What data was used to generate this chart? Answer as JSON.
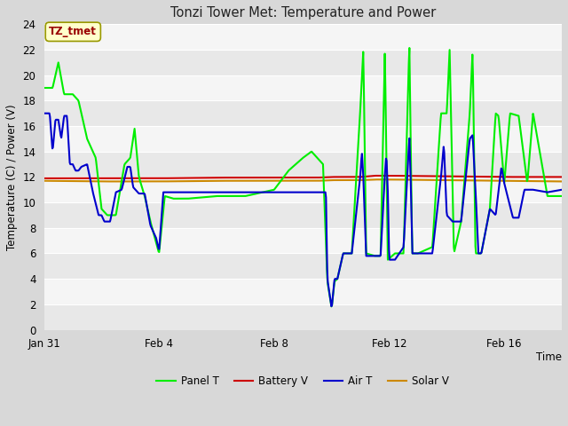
{
  "title": "Tonzi Tower Met: Temperature and Power",
  "xlabel": "Time",
  "ylabel": "Temperature (C) / Power (V)",
  "ylim": [
    0,
    24
  ],
  "yticks": [
    0,
    2,
    4,
    6,
    8,
    10,
    12,
    14,
    16,
    18,
    20,
    22,
    24
  ],
  "background_color": "#d8d8d8",
  "outer_bg": "#d8d8d8",
  "band_colors": [
    "#e8e8e8",
    "#f5f5f5"
  ],
  "legend_labels": [
    "Panel T",
    "Battery V",
    "Air T",
    "Solar V"
  ],
  "legend_colors": [
    "#00ee00",
    "#cc0000",
    "#0000cc",
    "#cc8800"
  ],
  "tz_label": "TZ_tmet",
  "tz_label_color": "#990000",
  "tz_box_facecolor": "#ffffcc",
  "tz_box_edgecolor": "#999900",
  "line_width": 1.5,
  "x_tick_labels": [
    "Jan 31",
    "Feb 4",
    "Feb 8",
    "Feb 12",
    "Feb 16"
  ],
  "x_tick_positions": [
    0,
    4,
    8,
    12,
    16
  ],
  "x_lim": [
    0,
    18
  ],
  "figsize": [
    6.4,
    4.8
  ],
  "dpi": 100,
  "panel_t_keypoints": [
    [
      0,
      19
    ],
    [
      0.3,
      19
    ],
    [
      0.5,
      21
    ],
    [
      0.7,
      18.5
    ],
    [
      1.0,
      18.5
    ],
    [
      1.2,
      18
    ],
    [
      1.5,
      15
    ],
    [
      1.8,
      13.5
    ],
    [
      2.0,
      9.5
    ],
    [
      2.2,
      9.0
    ],
    [
      2.5,
      9.0
    ],
    [
      2.8,
      13.0
    ],
    [
      3.0,
      13.5
    ],
    [
      3.15,
      15.8
    ],
    [
      3.3,
      12
    ],
    [
      3.5,
      10.5
    ],
    [
      3.7,
      8.5
    ],
    [
      4.0,
      6.0
    ],
    [
      4.2,
      10.5
    ],
    [
      4.5,
      10.3
    ],
    [
      5.0,
      10.3
    ],
    [
      6.0,
      10.5
    ],
    [
      7.0,
      10.5
    ],
    [
      8.0,
      11.0
    ],
    [
      8.5,
      12.5
    ],
    [
      9.0,
      13.5
    ],
    [
      9.3,
      14.0
    ],
    [
      9.5,
      13.5
    ],
    [
      9.7,
      13.0
    ],
    [
      9.85,
      3.8
    ],
    [
      10.0,
      1.7
    ],
    [
      10.1,
      3.8
    ],
    [
      10.2,
      4.0
    ],
    [
      10.4,
      6.0
    ],
    [
      10.7,
      6.0
    ],
    [
      11.0,
      17.5
    ],
    [
      11.1,
      22.0
    ],
    [
      11.2,
      6.0
    ],
    [
      11.5,
      5.8
    ],
    [
      11.7,
      5.8
    ],
    [
      11.85,
      22.0
    ],
    [
      11.95,
      5.5
    ],
    [
      12.2,
      6.0
    ],
    [
      12.5,
      6.0
    ],
    [
      12.7,
      22.5
    ],
    [
      12.8,
      6.0
    ],
    [
      13.0,
      6.0
    ],
    [
      13.5,
      6.5
    ],
    [
      13.8,
      17.0
    ],
    [
      14.0,
      17.0
    ],
    [
      14.1,
      22.0
    ],
    [
      14.25,
      6.0
    ],
    [
      14.5,
      8.5
    ],
    [
      14.8,
      17.0
    ],
    [
      14.9,
      22.0
    ],
    [
      15.0,
      6.0
    ],
    [
      15.2,
      6.0
    ],
    [
      15.5,
      9.5
    ],
    [
      15.7,
      17.0
    ],
    [
      15.8,
      16.8
    ],
    [
      16.0,
      11.5
    ],
    [
      16.2,
      17.0
    ],
    [
      16.5,
      16.8
    ],
    [
      16.8,
      11.5
    ],
    [
      17.0,
      17.0
    ],
    [
      17.5,
      10.5
    ],
    [
      18.0,
      10.5
    ]
  ],
  "air_t_keypoints": [
    [
      0,
      17
    ],
    [
      0.2,
      17
    ],
    [
      0.3,
      14
    ],
    [
      0.4,
      16.5
    ],
    [
      0.5,
      16.5
    ],
    [
      0.6,
      15
    ],
    [
      0.7,
      16.8
    ],
    [
      0.8,
      16.8
    ],
    [
      0.9,
      13
    ],
    [
      1.0,
      13
    ],
    [
      1.1,
      12.5
    ],
    [
      1.2,
      12.5
    ],
    [
      1.3,
      12.8
    ],
    [
      1.5,
      13.0
    ],
    [
      1.7,
      10.8
    ],
    [
      1.9,
      9.0
    ],
    [
      2.0,
      9.0
    ],
    [
      2.1,
      8.5
    ],
    [
      2.3,
      8.5
    ],
    [
      2.5,
      10.8
    ],
    [
      2.7,
      11
    ],
    [
      2.9,
      12.8
    ],
    [
      3.0,
      12.8
    ],
    [
      3.1,
      11.2
    ],
    [
      3.3,
      10.7
    ],
    [
      3.5,
      10.7
    ],
    [
      3.7,
      8.2
    ],
    [
      3.9,
      7.2
    ],
    [
      4.0,
      6.2
    ],
    [
      4.15,
      10.8
    ],
    [
      4.4,
      10.8
    ],
    [
      5.0,
      10.8
    ],
    [
      6.0,
      10.8
    ],
    [
      7.0,
      10.8
    ],
    [
      8.0,
      10.8
    ],
    [
      9.0,
      10.8
    ],
    [
      9.5,
      10.8
    ],
    [
      9.8,
      10.8
    ],
    [
      9.85,
      4.0
    ],
    [
      10.0,
      1.7
    ],
    [
      10.1,
      4.0
    ],
    [
      10.2,
      4.0
    ],
    [
      10.4,
      6.0
    ],
    [
      10.7,
      6.0
    ],
    [
      11.0,
      12.2
    ],
    [
      11.05,
      14.0
    ],
    [
      11.1,
      12.0
    ],
    [
      11.2,
      5.8
    ],
    [
      11.5,
      5.8
    ],
    [
      11.7,
      5.8
    ],
    [
      11.85,
      12.2
    ],
    [
      11.9,
      13.8
    ],
    [
      11.95,
      11.0
    ],
    [
      12.0,
      5.5
    ],
    [
      12.2,
      5.5
    ],
    [
      12.5,
      6.5
    ],
    [
      12.7,
      15.2
    ],
    [
      12.75,
      11.5
    ],
    [
      12.8,
      6.0
    ],
    [
      13.0,
      6.0
    ],
    [
      13.5,
      6.0
    ],
    [
      13.8,
      12.0
    ],
    [
      13.9,
      14.6
    ],
    [
      14.0,
      9.0
    ],
    [
      14.2,
      8.5
    ],
    [
      14.5,
      8.5
    ],
    [
      14.8,
      15.0
    ],
    [
      14.9,
      15.3
    ],
    [
      15.0,
      11.0
    ],
    [
      15.1,
      6.0
    ],
    [
      15.2,
      6.0
    ],
    [
      15.5,
      9.5
    ],
    [
      15.7,
      9.0
    ],
    [
      15.9,
      12.8
    ],
    [
      16.0,
      11.5
    ],
    [
      16.3,
      8.8
    ],
    [
      16.5,
      8.8
    ],
    [
      16.7,
      11.0
    ],
    [
      17.0,
      11.0
    ],
    [
      17.5,
      10.8
    ],
    [
      18.0,
      11.0
    ]
  ],
  "battery_v_keypoints": [
    [
      0,
      11.9
    ],
    [
      2.0,
      11.9
    ],
    [
      4.0,
      11.9
    ],
    [
      6.0,
      11.95
    ],
    [
      8.0,
      11.95
    ],
    [
      9.5,
      11.95
    ],
    [
      10.0,
      12.0
    ],
    [
      11.0,
      12.0
    ],
    [
      11.5,
      12.1
    ],
    [
      12.0,
      12.1
    ],
    [
      14.0,
      12.05
    ],
    [
      16.0,
      12.0
    ],
    [
      18.0,
      12.0
    ]
  ],
  "solar_v_keypoints": [
    [
      0,
      11.7
    ],
    [
      2.0,
      11.65
    ],
    [
      4.0,
      11.65
    ],
    [
      6.0,
      11.7
    ],
    [
      8.0,
      11.7
    ],
    [
      9.5,
      11.7
    ],
    [
      10.0,
      11.75
    ],
    [
      11.0,
      11.75
    ],
    [
      11.5,
      11.8
    ],
    [
      12.0,
      11.8
    ],
    [
      14.0,
      11.75
    ],
    [
      16.0,
      11.7
    ],
    [
      18.0,
      11.65
    ]
  ]
}
